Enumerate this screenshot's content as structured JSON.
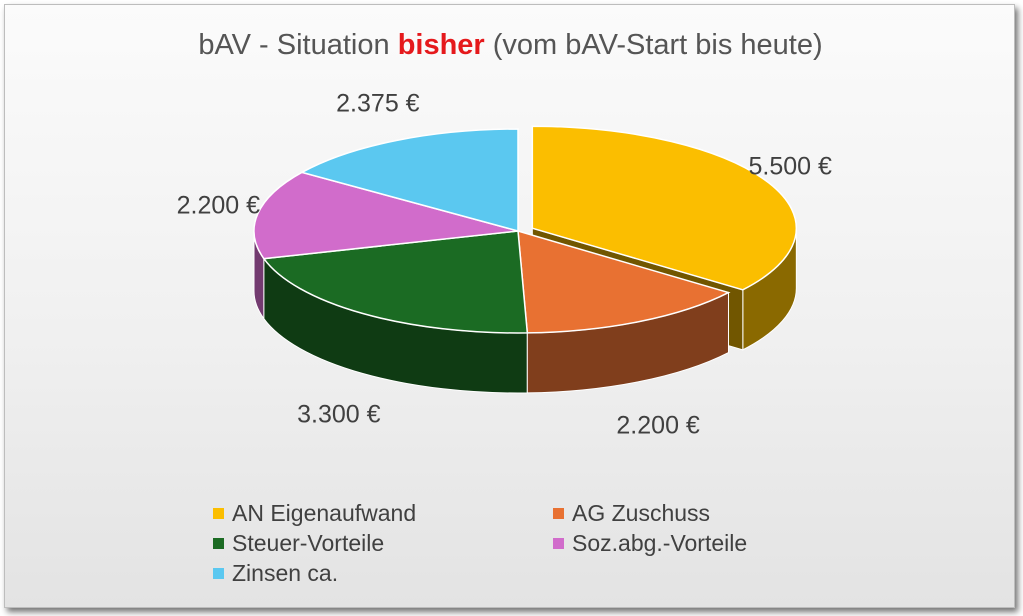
{
  "chart_data": {
    "type": "pie",
    "title": {
      "prefix": "bAV - Situation ",
      "highlight": "bisher",
      "suffix": " (vom bAV-Start bis heute)"
    },
    "categories": [
      "AN Eigenaufwand",
      "AG Zuschuss",
      "Steuer-Vorteile",
      "Soz.abg.-Vorteile",
      "Zinsen ca."
    ],
    "values": [
      5500,
      2200,
      3300,
      2200,
      2375
    ],
    "data_labels": [
      "5.500 €",
      "2.200 €",
      "3.300 €",
      "2.200 €",
      "2.375 €"
    ],
    "colors": [
      "#fbbe00",
      "#e87132",
      "#1b6b23",
      "#d16ccb",
      "#5bc8f0"
    ],
    "exploded": [
      true,
      false,
      false,
      false,
      false
    ],
    "legend_position": "bottom",
    "style": "3d-pie"
  }
}
